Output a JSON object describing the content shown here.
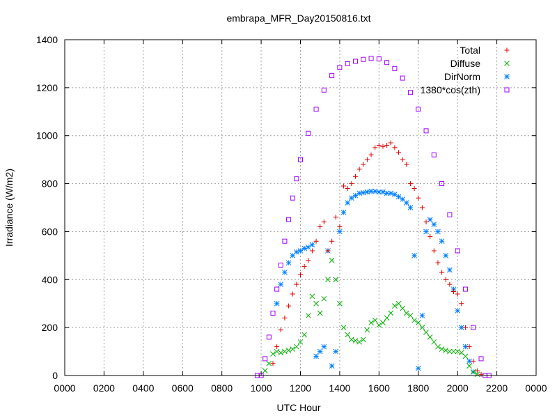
{
  "chart_data": {
    "type": "scatter",
    "title": "embrapa_MFR_Day20150816.txt",
    "xlabel": "UTC Hour",
    "ylabel": "Irradiance (W/m2)",
    "xlim": [
      0,
      24
    ],
    "ylim": [
      0,
      1400
    ],
    "xticks": [
      {
        "value": 0,
        "label": "0000"
      },
      {
        "value": 2,
        "label": "0200"
      },
      {
        "value": 4,
        "label": "0400"
      },
      {
        "value": 6,
        "label": "0600"
      },
      {
        "value": 8,
        "label": "0800"
      },
      {
        "value": 10,
        "label": "1000"
      },
      {
        "value": 12,
        "label": "1200"
      },
      {
        "value": 14,
        "label": "1400"
      },
      {
        "value": 16,
        "label": "1600"
      },
      {
        "value": 18,
        "label": "1800"
      },
      {
        "value": 20,
        "label": "2000"
      },
      {
        "value": 22,
        "label": "2200"
      },
      {
        "value": 24,
        "label": "0000"
      }
    ],
    "yticks": [
      0,
      200,
      400,
      600,
      800,
      1000,
      1200,
      1400
    ],
    "grid": true,
    "legend_position": "top-right",
    "series": [
      {
        "name": "Total",
        "color": "#e00000",
        "marker": "plus",
        "points": [
          [
            10.6,
            50
          ],
          [
            10.8,
            120
          ],
          [
            11.0,
            190
          ],
          [
            11.2,
            240
          ],
          [
            11.4,
            290
          ],
          [
            11.6,
            340
          ],
          [
            11.8,
            380
          ],
          [
            12.0,
            420
          ],
          [
            12.2,
            455
          ],
          [
            12.4,
            480
          ],
          [
            12.6,
            520
          ],
          [
            12.8,
            560
          ],
          [
            13.0,
            620
          ],
          [
            13.2,
            640
          ],
          [
            13.4,
            520
          ],
          [
            13.6,
            560
          ],
          [
            13.8,
            660
          ],
          [
            14.0,
            620
          ],
          [
            14.2,
            790
          ],
          [
            14.4,
            780
          ],
          [
            14.6,
            800
          ],
          [
            14.8,
            830
          ],
          [
            15.0,
            860
          ],
          [
            15.2,
            880
          ],
          [
            15.4,
            900
          ],
          [
            15.6,
            920
          ],
          [
            15.8,
            950
          ],
          [
            16.0,
            960
          ],
          [
            16.2,
            955
          ],
          [
            16.4,
            960
          ],
          [
            16.6,
            970
          ],
          [
            16.8,
            950
          ],
          [
            17.0,
            930
          ],
          [
            17.2,
            900
          ],
          [
            17.4,
            880
          ],
          [
            17.6,
            800
          ],
          [
            17.8,
            780
          ],
          [
            18.0,
            740
          ],
          [
            18.2,
            700
          ],
          [
            18.4,
            640
          ],
          [
            18.6,
            580
          ],
          [
            18.8,
            520
          ],
          [
            19.0,
            470
          ],
          [
            19.2,
            430
          ],
          [
            19.4,
            400
          ],
          [
            19.6,
            380
          ],
          [
            19.8,
            350
          ],
          [
            20.0,
            340
          ],
          [
            20.2,
            300
          ],
          [
            20.4,
            200
          ],
          [
            20.6,
            120
          ],
          [
            20.8,
            60
          ],
          [
            21.0,
            20
          ],
          [
            21.2,
            5
          ]
        ]
      },
      {
        "name": "Diffuse",
        "color": "#00b000",
        "marker": "cross",
        "points": [
          [
            10.2,
            20
          ],
          [
            10.4,
            50
          ],
          [
            10.6,
            90
          ],
          [
            10.8,
            100
          ],
          [
            11.0,
            95
          ],
          [
            11.2,
            100
          ],
          [
            11.4,
            105
          ],
          [
            11.6,
            110
          ],
          [
            11.8,
            120
          ],
          [
            12.0,
            140
          ],
          [
            12.2,
            170
          ],
          [
            12.4,
            250
          ],
          [
            12.6,
            330
          ],
          [
            12.8,
            300
          ],
          [
            13.0,
            260
          ],
          [
            13.2,
            320
          ],
          [
            13.4,
            400
          ],
          [
            13.6,
            480
          ],
          [
            13.8,
            400
          ],
          [
            14.0,
            300
          ],
          [
            14.2,
            200
          ],
          [
            14.4,
            170
          ],
          [
            14.6,
            150
          ],
          [
            14.8,
            145
          ],
          [
            15.0,
            140
          ],
          [
            15.2,
            150
          ],
          [
            15.4,
            190
          ],
          [
            15.6,
            220
          ],
          [
            15.8,
            230
          ],
          [
            16.0,
            210
          ],
          [
            16.2,
            220
          ],
          [
            16.4,
            240
          ],
          [
            16.6,
            260
          ],
          [
            16.8,
            290
          ],
          [
            17.0,
            300
          ],
          [
            17.2,
            280
          ],
          [
            17.4,
            260
          ],
          [
            17.6,
            250
          ],
          [
            17.8,
            230
          ],
          [
            18.0,
            220
          ],
          [
            18.2,
            200
          ],
          [
            18.4,
            180
          ],
          [
            18.6,
            160
          ],
          [
            18.8,
            140
          ],
          [
            19.0,
            120
          ],
          [
            19.2,
            110
          ],
          [
            19.4,
            105
          ],
          [
            19.6,
            100
          ],
          [
            19.8,
            100
          ],
          [
            20.0,
            100
          ],
          [
            20.2,
            95
          ],
          [
            20.4,
            80
          ],
          [
            20.6,
            40
          ],
          [
            20.8,
            15
          ],
          [
            21.0,
            5
          ]
        ]
      },
      {
        "name": "DirNorm",
        "color": "#0080ff",
        "marker": "star",
        "points": [
          [
            10.8,
            300
          ],
          [
            11.0,
            380
          ],
          [
            11.2,
            430
          ],
          [
            11.4,
            470
          ],
          [
            11.6,
            500
          ],
          [
            11.8,
            515
          ],
          [
            12.0,
            520
          ],
          [
            12.2,
            530
          ],
          [
            12.4,
            535
          ],
          [
            12.6,
            545
          ],
          [
            12.8,
            80
          ],
          [
            13.0,
            100
          ],
          [
            13.2,
            120
          ],
          [
            13.4,
            520
          ],
          [
            13.6,
            40
          ],
          [
            13.8,
            100
          ],
          [
            14.0,
            600
          ],
          [
            14.2,
            680
          ],
          [
            14.4,
            720
          ],
          [
            14.6,
            740
          ],
          [
            14.8,
            750
          ],
          [
            15.0,
            760
          ],
          [
            15.2,
            762
          ],
          [
            15.4,
            765
          ],
          [
            15.6,
            768
          ],
          [
            15.8,
            768
          ],
          [
            16.0,
            765
          ],
          [
            16.2,
            765
          ],
          [
            16.4,
            760
          ],
          [
            16.6,
            760
          ],
          [
            16.8,
            755
          ],
          [
            17.0,
            745
          ],
          [
            17.2,
            735
          ],
          [
            17.4,
            720
          ],
          [
            17.6,
            700
          ],
          [
            17.8,
            500
          ],
          [
            18.0,
            30
          ],
          [
            18.2,
            250
          ],
          [
            18.4,
            600
          ],
          [
            18.6,
            650
          ],
          [
            18.8,
            630
          ],
          [
            19.0,
            600
          ],
          [
            19.2,
            560
          ],
          [
            19.4,
            500
          ],
          [
            19.6,
            440
          ],
          [
            19.8,
            360
          ],
          [
            20.0,
            270
          ],
          [
            20.2,
            200
          ],
          [
            20.4,
            120
          ],
          [
            20.6,
            60
          ],
          [
            20.8,
            15
          ]
        ]
      },
      {
        "name": "1380*cos(zth)",
        "color": "#a000ff",
        "marker": "square",
        "points": [
          [
            9.8,
            0
          ],
          [
            10.0,
            0
          ],
          [
            10.2,
            70
          ],
          [
            10.4,
            160
          ],
          [
            10.6,
            260
          ],
          [
            10.8,
            360
          ],
          [
            11.0,
            460
          ],
          [
            11.2,
            560
          ],
          [
            11.4,
            650
          ],
          [
            11.6,
            740
          ],
          [
            11.8,
            820
          ],
          [
            12.0,
            900
          ],
          [
            12.4,
            1010
          ],
          [
            12.8,
            1110
          ],
          [
            13.2,
            1190
          ],
          [
            13.6,
            1250
          ],
          [
            14.0,
            1285
          ],
          [
            14.4,
            1300
          ],
          [
            14.8,
            1310
          ],
          [
            15.2,
            1318
          ],
          [
            15.6,
            1322
          ],
          [
            16.0,
            1320
          ],
          [
            16.4,
            1305
          ],
          [
            16.8,
            1280
          ],
          [
            17.2,
            1240
          ],
          [
            17.6,
            1180
          ],
          [
            18.0,
            1110
          ],
          [
            18.4,
            1020
          ],
          [
            18.8,
            920
          ],
          [
            19.2,
            800
          ],
          [
            19.6,
            670
          ],
          [
            20.0,
            520
          ],
          [
            20.4,
            360
          ],
          [
            20.8,
            200
          ],
          [
            21.2,
            70
          ],
          [
            21.4,
            0
          ],
          [
            21.6,
            0
          ]
        ]
      }
    ]
  }
}
